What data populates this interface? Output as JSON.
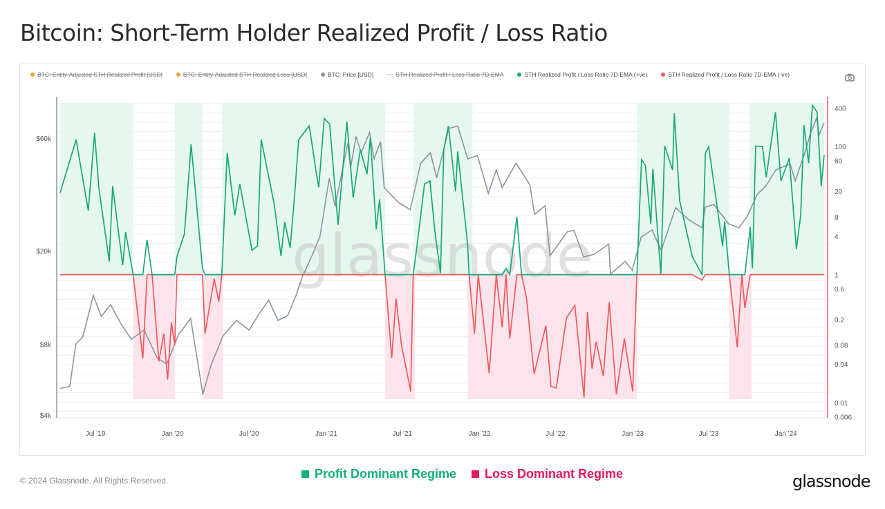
{
  "title": "Bitcoin: Short-Term Holder Realized Profit / Loss Ratio",
  "legend": [
    {
      "label": "BTC: Entity-Adjusted STH Realized Profit [USD]",
      "color": "#f0a030",
      "hidden": true
    },
    {
      "label": "BTC: Entity-Adjusted STH Realized Loss [USD]",
      "color": "#f0a030",
      "hidden": true
    },
    {
      "label": "BTC: Price [USD]",
      "color": "#8a959e",
      "hidden": false
    },
    {
      "label": "STH Realized Profit / Loss Ratio 7D-EMA",
      "color": "#f4c6da",
      "hidden": true
    },
    {
      "label": "STH Realized Profit / Loss Ratio 7D-EMA (+ve)",
      "color": "#19a974",
      "hidden": false
    },
    {
      "label": "STH Realized Profit / Loss Ratio 7D-EMA (-ve)",
      "color": "#ee5b5b",
      "hidden": false
    }
  ],
  "camera_icon": "camera-icon",
  "footer": {
    "copyright": "© 2024 Glassnode. All Rights Reserved.",
    "logo": "glassnode",
    "watermark": "glassnode",
    "regimes": [
      {
        "label": "Profit Dominant Regime",
        "color": "#13b07a"
      },
      {
        "label": "Loss Dominant Regime",
        "color": "#e8195a"
      }
    ]
  },
  "chart_data": {
    "type": "line",
    "x_range": [
      "2019-04-08",
      "2024-04-01"
    ],
    "x_ticks": [
      {
        "label": "Jul '19",
        "date": "2019-07-01"
      },
      {
        "label": "Jan '20",
        "date": "2020-01-01"
      },
      {
        "label": "Jul '20",
        "date": "2020-07-01"
      },
      {
        "label": "Jan '21",
        "date": "2021-01-01"
      },
      {
        "label": "Jul '21",
        "date": "2021-07-01"
      },
      {
        "label": "Jan '22",
        "date": "2022-01-01"
      },
      {
        "label": "Jul '22",
        "date": "2022-07-01"
      },
      {
        "label": "Jan '23",
        "date": "2023-01-01"
      },
      {
        "label": "Jul '23",
        "date": "2023-07-01"
      },
      {
        "label": "Jan '24",
        "date": "2024-01-01"
      }
    ],
    "left_axis": {
      "scale": "log",
      "range": [
        3900,
        90000
      ],
      "ticks": [
        {
          "label": "$4k",
          "value": 4000
        },
        {
          "label": "$8k",
          "value": 8000
        },
        {
          "label": "$20k",
          "value": 20000
        },
        {
          "label": "$60k",
          "value": 60000
        }
      ]
    },
    "right_axis": {
      "scale": "log",
      "range": [
        0.0058,
        600
      ],
      "ticks": [
        {
          "label": "400",
          "value": 400
        },
        {
          "label": "100",
          "value": 100
        },
        {
          "label": "60",
          "value": 60
        },
        {
          "label": "20",
          "value": 20
        },
        {
          "label": "8",
          "value": 8
        },
        {
          "label": "4",
          "value": 4
        },
        {
          "label": "1",
          "value": 1
        },
        {
          "label": "0.6",
          "value": 0.6
        },
        {
          "label": "0.2",
          "value": 0.2
        },
        {
          "label": "0.08",
          "value": 0.08
        },
        {
          "label": "0.04",
          "value": 0.04
        },
        {
          "label": "0.01",
          "value": 0.01
        },
        {
          "label": "0.006",
          "value": 0.006
        }
      ]
    },
    "grid": true,
    "threshold": 1,
    "regimes": [
      {
        "type": "profit",
        "start": "2019-04-08",
        "end": "2019-09-29"
      },
      {
        "type": "loss",
        "start": "2019-09-29",
        "end": "2020-01-06"
      },
      {
        "type": "profit",
        "start": "2020-01-06",
        "end": "2020-03-12"
      },
      {
        "type": "loss",
        "start": "2020-03-12",
        "end": "2020-04-30"
      },
      {
        "type": "profit",
        "start": "2020-04-27",
        "end": "2021-05-21"
      },
      {
        "type": "loss",
        "start": "2021-05-21",
        "end": "2021-07-31"
      },
      {
        "type": "profit",
        "start": "2021-07-27",
        "end": "2021-12-15"
      },
      {
        "type": "loss",
        "start": "2021-12-04",
        "end": "2023-01-11"
      },
      {
        "type": "profit",
        "start": "2023-01-11",
        "end": "2023-08-19"
      },
      {
        "type": "loss",
        "start": "2023-08-19",
        "end": "2023-10-11"
      },
      {
        "type": "profit",
        "start": "2023-10-06",
        "end": "2024-04-01"
      }
    ],
    "series": [
      {
        "name": "BTC: Price [USD]",
        "axis": "left",
        "color": "#8a959e",
        "points": [
          [
            "2019-04-08",
            5200
          ],
          [
            "2019-05-01",
            5300
          ],
          [
            "2019-05-15",
            8000
          ],
          [
            "2019-06-01",
            8600
          ],
          [
            "2019-06-26",
            12900
          ],
          [
            "2019-07-15",
            10500
          ],
          [
            "2019-08-06",
            11800
          ],
          [
            "2019-09-01",
            9700
          ],
          [
            "2019-09-25",
            8400
          ],
          [
            "2019-10-25",
            9200
          ],
          [
            "2019-11-25",
            7000
          ],
          [
            "2019-12-18",
            6600
          ],
          [
            "2020-01-15",
            8800
          ],
          [
            "2020-02-13",
            10300
          ],
          [
            "2020-03-13",
            4900
          ],
          [
            "2020-04-01",
            6500
          ],
          [
            "2020-04-30",
            8700
          ],
          [
            "2020-06-01",
            10100
          ],
          [
            "2020-07-01",
            9200
          ],
          [
            "2020-07-28",
            11000
          ],
          [
            "2020-08-17",
            12300
          ],
          [
            "2020-09-08",
            10100
          ],
          [
            "2020-10-01",
            10600
          ],
          [
            "2020-10-21",
            12900
          ],
          [
            "2020-11-05",
            15500
          ],
          [
            "2020-11-30",
            19400
          ],
          [
            "2020-12-17",
            23000
          ],
          [
            "2021-01-08",
            40500
          ],
          [
            "2021-01-22",
            30800
          ],
          [
            "2021-02-21",
            57000
          ],
          [
            "2021-02-28",
            45000
          ],
          [
            "2021-03-13",
            61000
          ],
          [
            "2021-03-25",
            52000
          ],
          [
            "2021-04-14",
            63500
          ],
          [
            "2021-04-25",
            49000
          ],
          [
            "2021-05-10",
            58000
          ],
          [
            "2021-05-19",
            37000
          ],
          [
            "2021-06-22",
            32000
          ],
          [
            "2021-07-20",
            29800
          ],
          [
            "2021-08-14",
            47000
          ],
          [
            "2021-09-06",
            52000
          ],
          [
            "2021-09-21",
            40700
          ],
          [
            "2021-10-20",
            66000
          ],
          [
            "2021-11-10",
            67500
          ],
          [
            "2021-12-04",
            49000
          ],
          [
            "2021-12-27",
            50700
          ],
          [
            "2022-01-22",
            35000
          ],
          [
            "2022-02-10",
            44000
          ],
          [
            "2022-02-24",
            37000
          ],
          [
            "2022-03-29",
            47000
          ],
          [
            "2022-05-01",
            38000
          ],
          [
            "2022-05-12",
            28500
          ],
          [
            "2022-06-06",
            31000
          ],
          [
            "2022-06-18",
            19000
          ],
          [
            "2022-07-29",
            24000
          ],
          [
            "2022-08-14",
            24400
          ],
          [
            "2022-09-06",
            18800
          ],
          [
            "2022-10-01",
            19300
          ],
          [
            "2022-11-05",
            21300
          ],
          [
            "2022-11-09",
            15900
          ],
          [
            "2022-12-14",
            18000
          ],
          [
            "2022-12-31",
            16500
          ],
          [
            "2023-01-21",
            22800
          ],
          [
            "2023-02-16",
            24500
          ],
          [
            "2023-03-10",
            20000
          ],
          [
            "2023-04-13",
            30400
          ],
          [
            "2023-05-15",
            27000
          ],
          [
            "2023-06-15",
            25000
          ],
          [
            "2023-06-23",
            30600
          ],
          [
            "2023-07-13",
            31400
          ],
          [
            "2023-08-17",
            26000
          ],
          [
            "2023-09-11",
            25000
          ],
          [
            "2023-10-01",
            28000
          ],
          [
            "2023-10-24",
            34500
          ],
          [
            "2023-11-15",
            37800
          ],
          [
            "2023-12-08",
            44000
          ],
          [
            "2024-01-11",
            46700
          ],
          [
            "2024-01-23",
            39500
          ],
          [
            "2024-02-15",
            52000
          ],
          [
            "2024-02-28",
            62500
          ],
          [
            "2024-03-14",
            73000
          ],
          [
            "2024-03-20",
            62000
          ],
          [
            "2024-04-01",
            69700
          ]
        ]
      },
      {
        "name": "STH Realized Profit / Loss Ratio 7D-EMA",
        "axis": "right",
        "pos_color": "#19a974",
        "neg_color": "#ee5b5b",
        "points": [
          [
            "2019-04-08",
            19
          ],
          [
            "2019-05-16",
            128
          ],
          [
            "2019-06-14",
            10
          ],
          [
            "2019-06-29",
            163
          ],
          [
            "2019-07-09",
            23
          ],
          [
            "2019-08-03",
            1.6
          ],
          [
            "2019-08-11",
            24
          ],
          [
            "2019-09-04",
            1.4
          ],
          [
            "2019-09-11",
            4.6
          ],
          [
            "2019-09-29",
            1.0
          ],
          [
            "2019-10-22",
            0.049
          ],
          [
            "2019-11-01",
            3.5
          ],
          [
            "2019-11-13",
            1.0
          ],
          [
            "2019-11-29",
            0.044
          ],
          [
            "2019-12-11",
            0.12
          ],
          [
            "2019-12-20",
            0.023
          ],
          [
            "2019-12-29",
            0.18
          ],
          [
            "2020-01-06",
            0.08
          ],
          [
            "2020-01-11",
            1.9
          ],
          [
            "2020-01-29",
            4.3
          ],
          [
            "2020-02-14",
            108
          ],
          [
            "2020-03-12",
            1.25
          ],
          [
            "2020-03-18",
            0.12
          ],
          [
            "2020-04-09",
            0.86
          ],
          [
            "2020-04-20",
            0.38
          ],
          [
            "2020-04-27",
            1.0
          ],
          [
            "2020-05-10",
            80
          ],
          [
            "2020-05-28",
            8.4
          ],
          [
            "2020-06-09",
            26
          ],
          [
            "2020-07-08",
            2.4
          ],
          [
            "2020-07-21",
            2.8
          ],
          [
            "2020-07-30",
            128
          ],
          [
            "2020-08-30",
            12.5
          ],
          [
            "2020-09-15",
            1.95
          ],
          [
            "2020-09-24",
            6.6
          ],
          [
            "2020-10-07",
            2.6
          ],
          [
            "2020-10-18",
            19
          ],
          [
            "2020-10-27",
            128
          ],
          [
            "2020-11-21",
            210
          ],
          [
            "2020-11-24",
            163
          ],
          [
            "2020-12-07",
            43
          ],
          [
            "2020-12-14",
            23
          ],
          [
            "2020-12-27",
            275
          ],
          [
            "2021-01-09",
            225
          ],
          [
            "2021-01-29",
            6
          ],
          [
            "2021-02-19",
            245
          ],
          [
            "2021-03-06",
            16
          ],
          [
            "2021-03-23",
            90
          ],
          [
            "2021-04-08",
            37
          ],
          [
            "2021-04-16",
            138
          ],
          [
            "2021-04-30",
            5.1
          ],
          [
            "2021-05-08",
            15
          ],
          [
            "2021-05-21",
            1.0
          ],
          [
            "2021-06-06",
            0.05
          ],
          [
            "2021-06-16",
            0.42
          ],
          [
            "2021-06-29",
            0.08
          ],
          [
            "2021-07-21",
            0.015
          ],
          [
            "2021-07-27",
            1.0
          ],
          [
            "2021-08-03",
            2.2
          ],
          [
            "2021-08-23",
            26
          ],
          [
            "2021-09-05",
            29
          ],
          [
            "2021-09-16",
            5.1
          ],
          [
            "2021-09-30",
            1.05
          ],
          [
            "2021-10-08",
            90
          ],
          [
            "2021-10-19",
            210
          ],
          [
            "2021-11-05",
            20
          ],
          [
            "2021-11-10",
            84
          ],
          [
            "2021-12-04",
            2.8
          ],
          [
            "2021-12-07",
            1.0
          ],
          [
            "2021-12-20",
            0.12
          ],
          [
            "2021-12-29",
            1.0
          ],
          [
            "2022-01-24",
            0.029
          ],
          [
            "2022-02-10",
            1.0
          ],
          [
            "2022-02-24",
            0.15
          ],
          [
            "2022-03-05",
            1.25
          ],
          [
            "2022-03-14",
            0.1
          ],
          [
            "2022-03-31",
            8
          ],
          [
            "2022-04-11",
            1.0
          ],
          [
            "2022-04-23",
            0.43
          ],
          [
            "2022-05-11",
            0.028
          ],
          [
            "2022-06-08",
            0.16
          ],
          [
            "2022-06-20",
            0.018
          ],
          [
            "2022-07-03",
            0.017
          ],
          [
            "2022-07-27",
            0.21
          ],
          [
            "2022-08-16",
            0.33
          ],
          [
            "2022-09-07",
            0.012
          ],
          [
            "2022-09-15",
            0.26
          ],
          [
            "2022-09-26",
            0.034
          ],
          [
            "2022-10-06",
            0.09
          ],
          [
            "2022-10-23",
            0.026
          ],
          [
            "2022-11-06",
            0.37
          ],
          [
            "2022-11-23",
            0.0135
          ],
          [
            "2022-12-12",
            0.1
          ],
          [
            "2023-01-01",
            0.015
          ],
          [
            "2023-01-11",
            1.0
          ],
          [
            "2023-01-22",
            62
          ],
          [
            "2023-01-31",
            51
          ],
          [
            "2023-02-13",
            6.2
          ],
          [
            "2023-02-18",
            45
          ],
          [
            "2023-03-09",
            1.0
          ],
          [
            "2023-03-18",
            102
          ],
          [
            "2023-04-06",
            43
          ],
          [
            "2023-04-10",
            330
          ],
          [
            "2023-04-23",
            14
          ],
          [
            "2023-05-23",
            1.9
          ],
          [
            "2023-06-15",
            0.82
          ],
          [
            "2023-06-23",
            78
          ],
          [
            "2023-07-01",
            100
          ],
          [
            "2023-08-03",
            2.8
          ],
          [
            "2023-08-08",
            6.8
          ],
          [
            "2023-08-19",
            1.0
          ],
          [
            "2023-09-07",
            0.073
          ],
          [
            "2023-09-18",
            1.0
          ],
          [
            "2023-09-25",
            0.3
          ],
          [
            "2023-10-08",
            5.5
          ],
          [
            "2023-10-13",
            1.25
          ],
          [
            "2023-10-21",
            102
          ],
          [
            "2023-11-06",
            100
          ],
          [
            "2023-11-15",
            33
          ],
          [
            "2023-12-07",
            345
          ],
          [
            "2023-12-20",
            29
          ],
          [
            "2024-01-09",
            66
          ],
          [
            "2024-01-26",
            2.5
          ],
          [
            "2024-02-05",
            8.4
          ],
          [
            "2024-02-13",
            215
          ],
          [
            "2024-02-24",
            55
          ],
          [
            "2024-03-04",
            440
          ],
          [
            "2024-03-15",
            345
          ],
          [
            "2024-03-25",
            24
          ],
          [
            "2024-04-01",
            74
          ]
        ]
      }
    ]
  }
}
